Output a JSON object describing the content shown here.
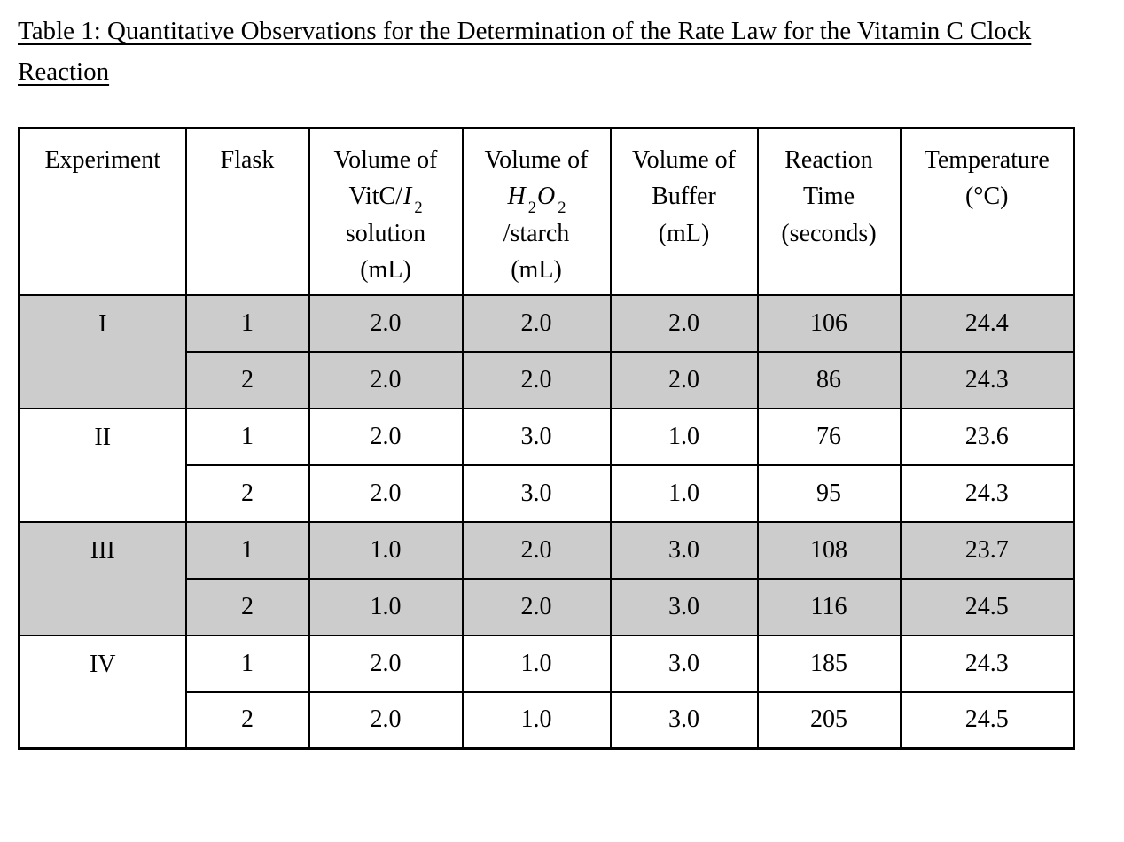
{
  "document": {
    "title": "Table 1: Quantitative Observations for the Determination of the Rate Law for the Vitamin C Clock Reaction"
  },
  "colors": {
    "shaded_row": "#cccccc",
    "border": "#000000",
    "text": "#000000",
    "background": "#ffffff"
  },
  "table": {
    "columns": [
      {
        "id": "experiment",
        "lines": [
          [
            {
              "t": "Experiment"
            }
          ]
        ]
      },
      {
        "id": "flask",
        "lines": [
          [
            {
              "t": "Flask"
            }
          ]
        ]
      },
      {
        "id": "vitc",
        "lines": [
          [
            {
              "t": "Volume of"
            }
          ],
          [
            {
              "t": "VitC/"
            },
            {
              "t": "I",
              "i": true
            },
            {
              "t": "2",
              "s": true
            }
          ],
          [
            {
              "t": "solution"
            }
          ],
          [
            {
              "t": "(mL)"
            }
          ]
        ]
      },
      {
        "id": "h2o2",
        "lines": [
          [
            {
              "t": "Volume of"
            }
          ],
          [
            {
              "t": "H",
              "i": true
            },
            {
              "t": "2",
              "s": true
            },
            {
              "t": "O",
              "i": true
            },
            {
              "t": "2",
              "s": true
            }
          ],
          [
            {
              "t": "/starch"
            }
          ],
          [
            {
              "t": "(mL)"
            }
          ]
        ]
      },
      {
        "id": "buffer",
        "lines": [
          [
            {
              "t": "Volume of"
            }
          ],
          [
            {
              "t": "Buffer"
            }
          ],
          [
            {
              "t": "(mL)"
            }
          ]
        ]
      },
      {
        "id": "time",
        "lines": [
          [
            {
              "t": "Reaction"
            }
          ],
          [
            {
              "t": "Time"
            }
          ],
          [
            {
              "t": "(seconds)"
            }
          ]
        ]
      },
      {
        "id": "temp",
        "lines": [
          [
            {
              "t": "Temperature"
            }
          ],
          [
            {
              "t": "(°C)"
            }
          ]
        ]
      }
    ],
    "groups": [
      {
        "experiment": "I",
        "shaded": true,
        "rows": [
          [
            "1",
            "2.0",
            "2.0",
            "2.0",
            "106",
            "24.4"
          ],
          [
            "2",
            "2.0",
            "2.0",
            "2.0",
            "86",
            "24.3"
          ]
        ]
      },
      {
        "experiment": "II",
        "shaded": false,
        "rows": [
          [
            "1",
            "2.0",
            "3.0",
            "1.0",
            "76",
            "23.6"
          ],
          [
            "2",
            "2.0",
            "3.0",
            "1.0",
            "95",
            "24.3"
          ]
        ]
      },
      {
        "experiment": "III",
        "shaded": true,
        "rows": [
          [
            "1",
            "1.0",
            "2.0",
            "3.0",
            "108",
            "23.7"
          ],
          [
            "2",
            "1.0",
            "2.0",
            "3.0",
            "116",
            "24.5"
          ]
        ]
      },
      {
        "experiment": "IV",
        "shaded": false,
        "rows": [
          [
            "1",
            "2.0",
            "1.0",
            "3.0",
            "185",
            "24.3"
          ],
          [
            "2",
            "2.0",
            "1.0",
            "3.0",
            "205",
            "24.5"
          ]
        ]
      }
    ]
  }
}
